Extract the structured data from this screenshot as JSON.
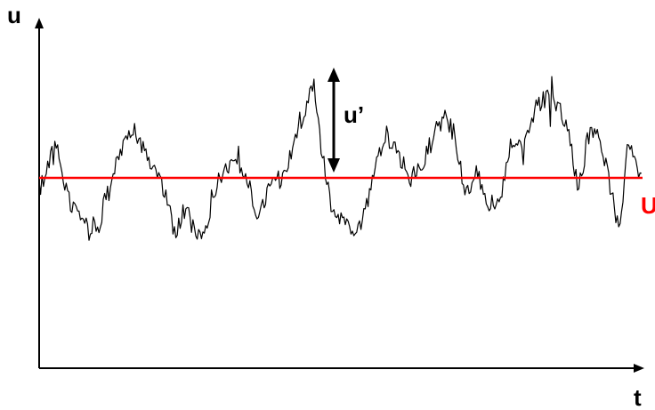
{
  "labels": {
    "y_axis": "u",
    "x_axis": "t",
    "fluctuation": "u’",
    "mean": "U"
  },
  "colors": {
    "signal": "#000000",
    "mean_line": "#ff0000",
    "mean_label": "#ff0000",
    "axes": "#000000"
  }
}
